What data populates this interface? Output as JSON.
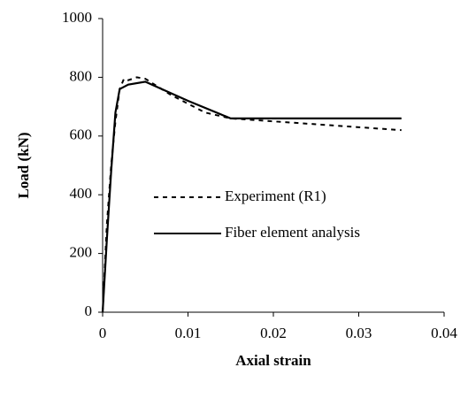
{
  "chart_data": {
    "type": "line",
    "x_label": "Axial strain",
    "y_label": "Load (kN)",
    "xlim": [
      0,
      0.04
    ],
    "xticks": [
      0,
      0.01,
      0.02,
      0.03,
      0.04
    ],
    "ylim": [
      0,
      1000
    ],
    "yticks": [
      0,
      200,
      400,
      600,
      800,
      1000
    ],
    "legend": "inside-right",
    "series": [
      {
        "name": "Experiment (R1)",
        "color": "#000000",
        "dash": true,
        "x": [
          0,
          0.0005,
          0.001,
          0.0015,
          0.002,
          0.0025,
          0.003,
          0.004,
          0.005,
          0.008,
          0.012,
          0.015,
          0.02,
          0.025,
          0.03,
          0.035
        ],
        "values": [
          0,
          300,
          500,
          650,
          760,
          795,
          790,
          800,
          795,
          740,
          680,
          660,
          650,
          640,
          630,
          620
        ]
      },
      {
        "name": "Fiber element analysis",
        "color": "#000000",
        "dash": false,
        "x": [
          0,
          0.0005,
          0.001,
          0.0015,
          0.002,
          0.003,
          0.005,
          0.01,
          0.015,
          0.02,
          0.035
        ],
        "values": [
          0,
          250,
          480,
          680,
          760,
          775,
          785,
          720,
          660,
          660,
          660
        ]
      }
    ]
  }
}
